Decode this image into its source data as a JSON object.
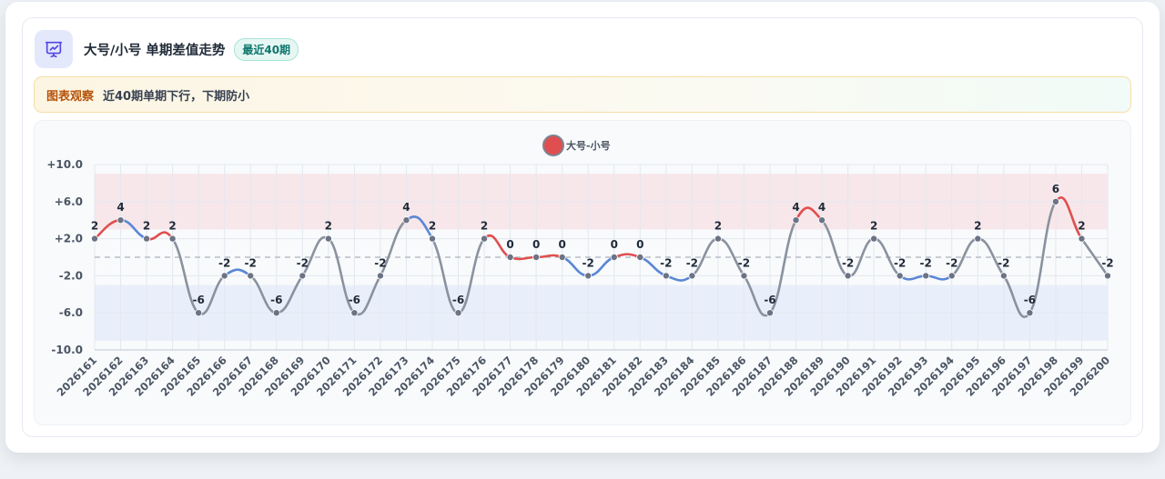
{
  "header": {
    "title": "大号/小号 单期差值走势",
    "badge": "最近40期",
    "icon": "chart-presentation-icon",
    "accent": "#4f46e5"
  },
  "notice": {
    "label": "图表观察",
    "text": "近40期单期下行，下期防小"
  },
  "colors": {
    "up": "#e04f4f",
    "down": "#5b86d6",
    "neutral": "#8a929f",
    "band_high": "#f7e3e6",
    "band_low": "#e6ecf9"
  },
  "chart_data": {
    "type": "line",
    "categories": [
      "2026161",
      "2026162",
      "2026163",
      "2026164",
      "2026165",
      "2026166",
      "2026167",
      "2026168",
      "2026169",
      "2026170",
      "2026171",
      "2026172",
      "2026173",
      "2026174",
      "2026175",
      "2026176",
      "2026177",
      "2026178",
      "2026179",
      "2026180",
      "2026181",
      "2026182",
      "2026183",
      "2026184",
      "2026185",
      "2026186",
      "2026187",
      "2026188",
      "2026189",
      "2026190",
      "2026191",
      "2026192",
      "2026193",
      "2026194",
      "2026195",
      "2026196",
      "2026197",
      "2026198",
      "2026199",
      "2026200"
    ],
    "series": [
      {
        "name": "大号-小号",
        "color": "#e04f4f",
        "values": [
          2,
          4,
          2,
          2,
          -6,
          -2,
          -2,
          -6,
          -2,
          2,
          -6,
          -2,
          4,
          2,
          -6,
          2,
          0,
          0,
          0,
          -2,
          0,
          0,
          -2,
          -2,
          2,
          -2,
          -6,
          4,
          4,
          -2,
          2,
          -2,
          -2,
          -2,
          2,
          -2,
          -6,
          6,
          2,
          -2
        ],
        "data_labels": [
          "2",
          "4",
          "2",
          "2",
          "-6",
          "-2",
          "-2",
          "-6",
          "-2",
          "2",
          "-6",
          "-2",
          "4",
          "2",
          "-6",
          "2",
          "0",
          "0",
          "0",
          "-2",
          "0",
          "0",
          "-2",
          "-2",
          "2",
          "-2",
          "-6",
          "4",
          "4",
          "-2",
          "2",
          "-2",
          "-2",
          "-2",
          "2",
          "-2",
          "-6",
          "6",
          "2",
          "-2"
        ]
      }
    ],
    "ylim": [
      -10,
      10
    ],
    "y_ticks": [
      10,
      6,
      2,
      -2,
      -6,
      -10
    ],
    "y_tick_labels": [
      "+10.0",
      "+6.0",
      "+2.0",
      "-2.0",
      "-6.0",
      "-10.0"
    ],
    "bands": [
      [
        3,
        9
      ],
      [
        -9,
        -3
      ]
    ],
    "reference_line": 0,
    "grid": true,
    "legend": "top-center"
  }
}
